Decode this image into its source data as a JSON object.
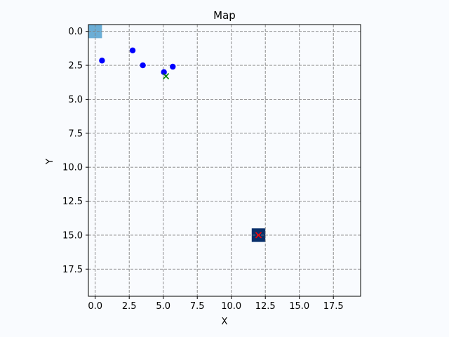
{
  "chart_data": {
    "type": "scatter",
    "title": "Map",
    "xlabel": "X",
    "ylabel": "Y",
    "xlim": [
      -0.5,
      19.5
    ],
    "ylim": [
      19.5,
      -0.5
    ],
    "y_inverted": true,
    "grid": true,
    "grid_style": "dashed",
    "xticks": [
      0.0,
      2.5,
      5.0,
      7.5,
      10.0,
      12.5,
      15.0,
      17.5
    ],
    "xtick_labels": [
      "0.0",
      "2.5",
      "5.0",
      "7.5",
      "10.0",
      "12.5",
      "15.0",
      "17.5"
    ],
    "yticks": [
      0.0,
      2.5,
      5.0,
      7.5,
      10.0,
      12.5,
      15.0,
      17.5
    ],
    "ytick_labels": [
      "0.0",
      "2.5",
      "5.0",
      "7.5",
      "10.0",
      "12.5",
      "15.0",
      "17.5"
    ],
    "cells": [
      {
        "x": 0,
        "y": 0,
        "color": "#6baed6"
      },
      {
        "x": 12,
        "y": 15,
        "color": "#08306b"
      }
    ],
    "series": [
      {
        "marker": "circle",
        "color": "#0000ff",
        "points": [
          {
            "x": 0.5,
            "y": 2.15
          },
          {
            "x": 2.75,
            "y": 1.4
          },
          {
            "x": 3.5,
            "y": 2.5
          },
          {
            "x": 5.05,
            "y": 3.0
          },
          {
            "x": 5.7,
            "y": 2.6
          }
        ]
      },
      {
        "marker": "x",
        "color": "#008000",
        "points": [
          {
            "x": 5.2,
            "y": 3.3
          }
        ]
      },
      {
        "marker": "x",
        "color": "#ff0000",
        "points": [
          {
            "x": 12.0,
            "y": 15.0
          }
        ]
      }
    ]
  }
}
